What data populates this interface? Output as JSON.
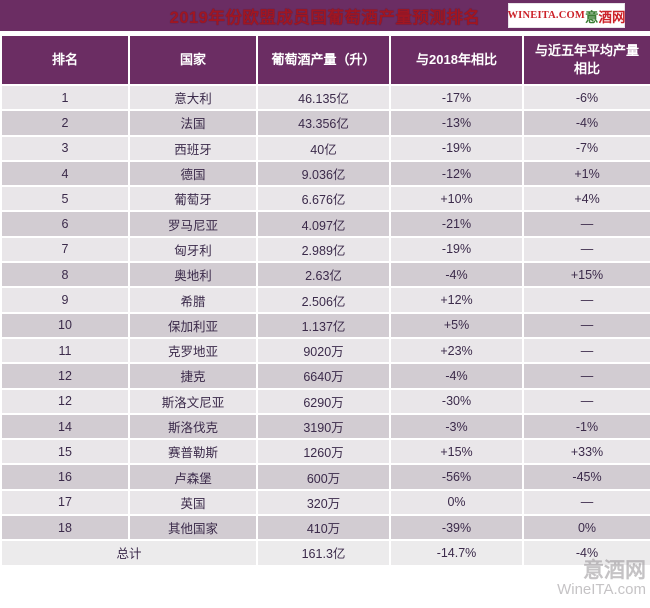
{
  "title": "2019年份欧盟成员国葡萄酒产量预测排名",
  "logo": {
    "latin": "WINEITA.COM",
    "cn_green": "意",
    "cn_red": "酒网"
  },
  "watermark": {
    "line1": "意酒网",
    "line2": "WineITA.com"
  },
  "colors": {
    "purple": "#6b2d63",
    "title_red": "#a01622",
    "logo_red": "#cc2229",
    "logo_green": "#3a7d33",
    "row_light": "#e9e6e9",
    "row_dark": "#d2ccd2",
    "total_row": "#ecebec",
    "cell_text": "#3b2a4a"
  },
  "chart_data": {
    "type": "table",
    "title": "2019年份欧盟成员国葡萄酒产量预测排名",
    "columns": [
      "排名",
      "国家",
      "葡萄酒产量（升）",
      "与2018年相比",
      "与近五年平均产量相比"
    ],
    "rows": [
      [
        "1",
        "意大利",
        "46.135亿",
        "-17%",
        "-6%"
      ],
      [
        "2",
        "法国",
        "43.356亿",
        "-13%",
        "-4%"
      ],
      [
        "3",
        "西班牙",
        "40亿",
        "-19%",
        "-7%"
      ],
      [
        "4",
        "德国",
        "9.036亿",
        "-12%",
        "+1%"
      ],
      [
        "5",
        "葡萄牙",
        "6.676亿",
        "+10%",
        "+4%"
      ],
      [
        "6",
        "罗马尼亚",
        "4.097亿",
        "-21%",
        "—"
      ],
      [
        "7",
        "匈牙利",
        "2.989亿",
        "-19%",
        "—"
      ],
      [
        "8",
        "奥地利",
        "2.63亿",
        "-4%",
        "+15%"
      ],
      [
        "9",
        "希腊",
        "2.506亿",
        "+12%",
        "—"
      ],
      [
        "10",
        "保加利亚",
        "1.137亿",
        "+5%",
        "—"
      ],
      [
        "11",
        "克罗地亚",
        "9020万",
        "+23%",
        "—"
      ],
      [
        "12",
        "捷克",
        "6640万",
        "-4%",
        "—"
      ],
      [
        "12",
        "斯洛文尼亚",
        "6290万",
        "-30%",
        "—"
      ],
      [
        "14",
        "斯洛伐克",
        "3190万",
        "-3%",
        "-1%"
      ],
      [
        "15",
        "赛普勒斯",
        "1260万",
        "+15%",
        "+33%"
      ],
      [
        "16",
        "卢森堡",
        "600万",
        "-56%",
        "-45%"
      ],
      [
        "17",
        "英国",
        "320万",
        "0%",
        "—"
      ],
      [
        "18",
        "其他国家",
        "410万",
        "-39%",
        "0%"
      ]
    ],
    "total_row": [
      "总计",
      "161.3亿",
      "-14.7%",
      "-4%"
    ]
  }
}
